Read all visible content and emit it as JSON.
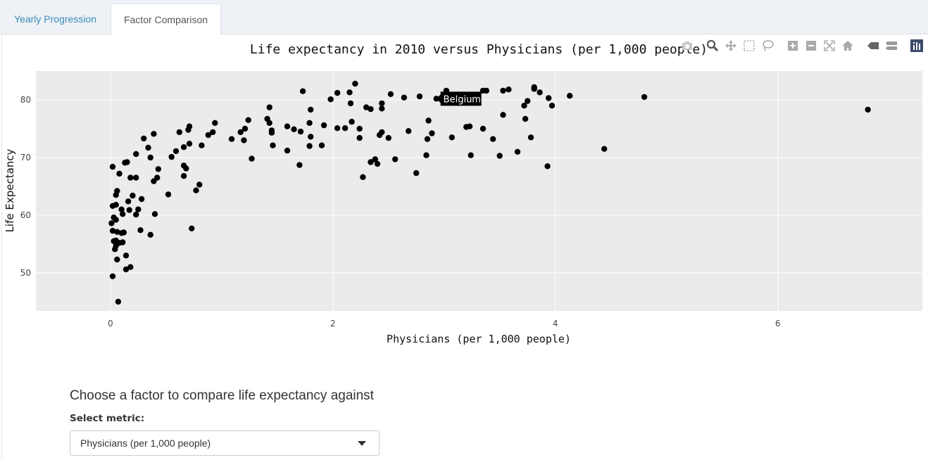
{
  "tabs": [
    {
      "label": "Yearly Progression",
      "active": false
    },
    {
      "label": "Factor Comparison",
      "active": true
    }
  ],
  "modebar": {
    "buttons": [
      "camera-icon",
      "zoom-icon",
      "pan-icon",
      "box-select-icon",
      "lasso-icon",
      "zoom-in-icon",
      "zoom-out-icon",
      "autoscale-icon",
      "reset-axes-icon",
      "hover-closest-icon",
      "hover-compare-icon",
      "plotly-logo-icon"
    ]
  },
  "tooltip": {
    "label": "Belgium",
    "x": 2.93,
    "y": 80.2
  },
  "controls": {
    "heading": "Choose a factor to compare life expectancy against",
    "select_label": "Select metric:",
    "select_value": "Physicians (per 1,000 people)"
  },
  "colors": {
    "plot_bg": "#ebebeb",
    "grid": "#ffffff",
    "point": "#000000",
    "link": "#3c8dbc"
  },
  "chart_data": {
    "type": "scatter",
    "title": "Life expectancy in 2010 versus Physicians (per 1,000 people)",
    "xlabel": "Physicians (per 1,000 people)",
    "ylabel": "Life Expectancy",
    "xlim": [
      -0.67,
      7.3
    ],
    "ylim": [
      43.4,
      85.0
    ],
    "xticks": [
      0,
      2,
      4,
      6
    ],
    "yticks": [
      50,
      60,
      70,
      80
    ],
    "grid": true,
    "legend": "none",
    "points": [
      [
        0.02,
        68.4
      ],
      [
        0.01,
        58.6
      ],
      [
        0.02,
        61.6
      ],
      [
        0.03,
        59.6
      ],
      [
        0.02,
        57.3
      ],
      [
        0.03,
        55.5
      ],
      [
        0.02,
        49.4
      ],
      [
        0.05,
        61.8
      ],
      [
        0.05,
        63.5
      ],
      [
        0.06,
        64.2
      ],
      [
        0.05,
        59.2
      ],
      [
        0.06,
        57.1
      ],
      [
        0.05,
        55.6
      ],
      [
        0.06,
        52.3
      ],
      [
        0.04,
        54.1
      ],
      [
        0.05,
        54.7
      ],
      [
        0.08,
        55.2
      ],
      [
        0.07,
        45.0
      ],
      [
        0.08,
        67.2
      ],
      [
        0.1,
        61.0
      ],
      [
        0.1,
        56.9
      ],
      [
        0.11,
        55.3
      ],
      [
        0.12,
        57.0
      ],
      [
        0.11,
        60.2
      ],
      [
        0.13,
        69.1
      ],
      [
        0.15,
        69.2
      ],
      [
        0.14,
        50.6
      ],
      [
        0.14,
        53.0
      ],
      [
        0.16,
        62.4
      ],
      [
        0.17,
        60.9
      ],
      [
        0.18,
        66.5
      ],
      [
        0.18,
        51.0
      ],
      [
        0.2,
        63.4
      ],
      [
        0.23,
        70.6
      ],
      [
        0.23,
        66.5
      ],
      [
        0.23,
        60.1
      ],
      [
        0.25,
        61.0
      ],
      [
        0.27,
        57.4
      ],
      [
        0.28,
        62.8
      ],
      [
        0.3,
        73.3
      ],
      [
        0.34,
        71.7
      ],
      [
        0.36,
        70.0
      ],
      [
        0.36,
        56.6
      ],
      [
        0.39,
        74.1
      ],
      [
        0.39,
        65.9
      ],
      [
        0.4,
        60.2
      ],
      [
        0.42,
        66.5
      ],
      [
        0.43,
        68.0
      ],
      [
        0.52,
        63.6
      ],
      [
        0.55,
        70.1
      ],
      [
        0.59,
        71.1
      ],
      [
        0.62,
        74.4
      ],
      [
        0.66,
        66.8
      ],
      [
        0.66,
        68.6
      ],
      [
        0.66,
        71.8
      ],
      [
        0.68,
        68.1
      ],
      [
        0.7,
        74.8
      ],
      [
        0.71,
        75.4
      ],
      [
        0.71,
        72.4
      ],
      [
        0.73,
        57.7
      ],
      [
        0.77,
        64.3
      ],
      [
        0.8,
        65.3
      ],
      [
        0.82,
        72.1
      ],
      [
        0.88,
        73.9
      ],
      [
        0.92,
        74.4
      ],
      [
        0.94,
        76.0
      ],
      [
        1.09,
        73.2
      ],
      [
        1.17,
        74.4
      ],
      [
        1.21,
        75.0
      ],
      [
        1.2,
        73.0
      ],
      [
        1.24,
        76.5
      ],
      [
        1.27,
        69.8
      ],
      [
        1.41,
        76.7
      ],
      [
        1.43,
        76.0
      ],
      [
        1.45,
        74.7
      ],
      [
        1.45,
        74.3
      ],
      [
        1.46,
        72.1
      ],
      [
        1.43,
        78.7
      ],
      [
        1.59,
        75.4
      ],
      [
        1.59,
        71.2
      ],
      [
        1.65,
        74.9
      ],
      [
        1.71,
        74.5
      ],
      [
        1.73,
        81.5
      ],
      [
        1.7,
        68.7
      ],
      [
        1.79,
        76.0
      ],
      [
        1.79,
        72.0
      ],
      [
        1.8,
        73.6
      ],
      [
        1.8,
        78.3
      ],
      [
        1.9,
        72.1
      ],
      [
        1.92,
        75.6
      ],
      [
        1.98,
        80.1
      ],
      [
        2.04,
        81.2
      ],
      [
        2.04,
        75.1
      ],
      [
        2.11,
        75.1
      ],
      [
        2.15,
        81.3
      ],
      [
        2.16,
        79.4
      ],
      [
        2.17,
        76.2
      ],
      [
        2.2,
        82.8
      ],
      [
        2.24,
        75.0
      ],
      [
        2.24,
        73.4
      ],
      [
        2.27,
        66.6
      ],
      [
        2.3,
        78.7
      ],
      [
        2.34,
        78.4
      ],
      [
        2.34,
        69.2
      ],
      [
        2.38,
        69.7
      ],
      [
        2.4,
        68.9
      ],
      [
        2.42,
        73.9
      ],
      [
        2.44,
        74.4
      ],
      [
        2.44,
        79.4
      ],
      [
        2.44,
        78.5
      ],
      [
        2.5,
        73.4
      ],
      [
        2.52,
        81.0
      ],
      [
        2.56,
        69.7
      ],
      [
        2.64,
        80.4
      ],
      [
        2.68,
        74.6
      ],
      [
        2.75,
        67.3
      ],
      [
        2.78,
        80.6
      ],
      [
        2.84,
        70.4
      ],
      [
        2.85,
        73.2
      ],
      [
        2.86,
        76.4
      ],
      [
        2.89,
        74.2
      ],
      [
        3.02,
        81.6
      ],
      [
        3.07,
        73.5
      ],
      [
        3.2,
        75.3
      ],
      [
        3.23,
        75.4
      ],
      [
        3.24,
        70.4
      ],
      [
        3.35,
        81.6
      ],
      [
        3.35,
        75.0
      ],
      [
        3.38,
        81.6
      ],
      [
        3.44,
        73.2
      ],
      [
        3.5,
        70.3
      ],
      [
        3.53,
        81.6
      ],
      [
        3.53,
        77.4
      ],
      [
        3.58,
        81.8
      ],
      [
        3.66,
        71.0
      ],
      [
        3.72,
        79.0
      ],
      [
        3.73,
        76.7
      ],
      [
        3.75,
        79.8
      ],
      [
        3.78,
        73.5
      ],
      [
        3.81,
        82.2
      ],
      [
        3.81,
        81.9
      ],
      [
        3.86,
        81.3
      ],
      [
        3.93,
        68.5
      ],
      [
        3.94,
        80.3
      ],
      [
        3.97,
        79.0
      ],
      [
        4.13,
        80.7
      ],
      [
        4.44,
        71.5
      ],
      [
        4.8,
        80.5
      ],
      [
        6.81,
        78.3
      ],
      [
        2.93,
        80.2
      ]
    ]
  }
}
